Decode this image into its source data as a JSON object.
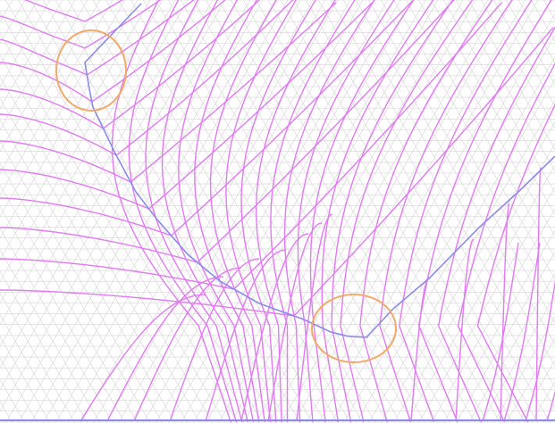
{
  "diagram": {
    "kind": "field-lines-on-triangular-mesh",
    "colors": {
      "background": "#ffffff",
      "mesh": "#d4d4d4",
      "field_lines": "#e07cf0",
      "boundary": "#8c8ce8",
      "highlight": "#f0aa6a"
    },
    "highlights": [
      "region-top-left",
      "region-bottom-center"
    ]
  }
}
